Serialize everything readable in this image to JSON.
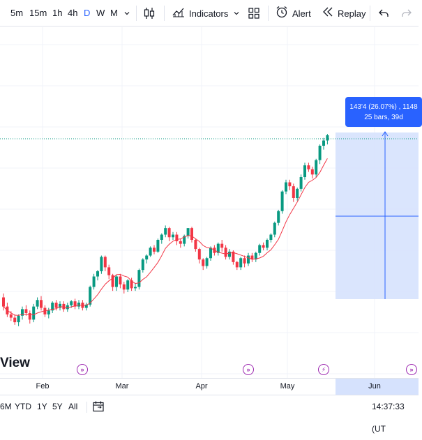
{
  "toolbar": {
    "intervals": [
      "5m",
      "15m",
      "1h",
      "4h",
      "D",
      "W",
      "M"
    ],
    "active_interval": "D",
    "indicators_label": "Indicators",
    "alert_label": "Alert",
    "replay_label": "Replay"
  },
  "measure": {
    "line1": "143'4 (26.07%) , 1148",
    "line2": "25 bars, 39d"
  },
  "brand": "View",
  "time_axis": [
    "Feb",
    "Mar",
    "Apr",
    "May",
    "Jun"
  ],
  "bottombar": {
    "ranges": [
      "6M",
      "YTD",
      "1Y",
      "5Y",
      "All"
    ],
    "clock": "14:37:33 (UT"
  },
  "colors": {
    "up": "#089981",
    "down": "#f23645",
    "ma": "#f23645",
    "accent": "#2962ff",
    "measure_fill": "#d6e2fd",
    "event": "#9c27b0"
  },
  "icons": [
    "chevron-down-icon",
    "candles-icon",
    "indicators-icon",
    "layout-icon",
    "alert-icon",
    "replay-icon",
    "undo-icon",
    "redo-icon",
    "calendar-range-icon",
    "event-icon"
  ],
  "chart_data": {
    "type": "candlestick",
    "x_labels": [
      "Feb",
      "Mar",
      "Apr",
      "May",
      "Jun"
    ],
    "candles": [
      [
        356,
        342,
        362,
        336
      ],
      [
        342,
        330,
        348,
        326
      ],
      [
        330,
        325,
        335,
        320
      ],
      [
        325,
        318,
        330,
        314
      ],
      [
        318,
        328,
        330,
        312
      ],
      [
        328,
        338,
        342,
        322
      ],
      [
        338,
        332,
        344,
        328
      ],
      [
        332,
        322,
        336,
        316
      ],
      [
        322,
        342,
        346,
        318
      ],
      [
        342,
        352,
        356,
        338
      ],
      [
        352,
        340,
        358,
        336
      ],
      [
        340,
        330,
        344,
        326
      ],
      [
        330,
        336,
        340,
        324
      ],
      [
        336,
        348,
        350,
        332
      ],
      [
        348,
        340,
        352,
        336
      ],
      [
        340,
        346,
        350,
        336
      ],
      [
        346,
        338,
        350,
        334
      ],
      [
        338,
        344,
        348,
        334
      ],
      [
        344,
        350,
        352,
        340
      ],
      [
        350,
        342,
        354,
        338
      ],
      [
        342,
        348,
        352,
        338
      ],
      [
        348,
        340,
        352,
        336
      ],
      [
        340,
        345,
        348,
        336
      ],
      [
        345,
        372,
        374,
        342
      ],
      [
        372,
        388,
        392,
        368
      ],
      [
        388,
        396,
        398,
        382
      ],
      [
        396,
        418,
        420,
        392
      ],
      [
        418,
        402,
        420,
        396
      ],
      [
        402,
        390,
        406,
        384
      ],
      [
        390,
        372,
        392,
        366
      ],
      [
        372,
        388,
        390,
        366
      ],
      [
        388,
        376,
        392,
        370
      ],
      [
        376,
        368,
        380,
        362
      ],
      [
        368,
        382,
        384,
        364
      ],
      [
        382,
        370,
        386,
        366
      ],
      [
        370,
        372,
        378,
        366
      ],
      [
        372,
        398,
        400,
        368
      ],
      [
        398,
        414,
        416,
        394
      ],
      [
        414,
        420,
        422,
        408
      ],
      [
        420,
        432,
        434,
        418
      ],
      [
        432,
        426,
        436,
        422
      ],
      [
        426,
        444,
        446,
        424
      ],
      [
        444,
        452,
        454,
        438
      ],
      [
        452,
        462,
        466,
        448
      ],
      [
        462,
        448,
        464,
        442
      ],
      [
        448,
        452,
        456,
        444
      ],
      [
        452,
        442,
        456,
        436
      ],
      [
        442,
        438,
        446,
        432
      ],
      [
        438,
        450,
        452,
        434
      ],
      [
        450,
        462,
        462,
        446
      ],
      [
        462,
        444,
        464,
        440
      ],
      [
        444,
        430,
        446,
        426
      ],
      [
        430,
        414,
        432,
        408
      ],
      [
        414,
        404,
        416,
        398
      ],
      [
        404,
        416,
        418,
        400
      ],
      [
        416,
        432,
        434,
        412
      ],
      [
        432,
        424,
        436,
        420
      ],
      [
        424,
        438,
        440,
        420
      ],
      [
        438,
        432,
        444,
        426
      ],
      [
        432,
        418,
        436,
        414
      ],
      [
        418,
        426,
        430,
        414
      ],
      [
        426,
        410,
        428,
        406
      ],
      [
        410,
        402,
        412,
        398
      ],
      [
        402,
        416,
        418,
        398
      ],
      [
        416,
        408,
        420,
        402
      ],
      [
        408,
        420,
        424,
        404
      ],
      [
        420,
        414,
        424,
        410
      ],
      [
        414,
        424,
        426,
        410
      ],
      [
        424,
        436,
        438,
        420
      ],
      [
        436,
        432,
        440,
        428
      ],
      [
        432,
        444,
        446,
        428
      ],
      [
        444,
        452,
        454,
        440
      ],
      [
        452,
        470,
        472,
        448
      ],
      [
        470,
        488,
        490,
        466
      ],
      [
        488,
        518,
        520,
        484
      ],
      [
        518,
        532,
        536,
        514
      ],
      [
        532,
        526,
        536,
        520
      ],
      [
        526,
        508,
        530,
        502
      ],
      [
        508,
        522,
        524,
        504
      ],
      [
        522,
        540,
        544,
        518
      ],
      [
        540,
        558,
        562,
        536
      ],
      [
        558,
        552,
        562,
        548
      ],
      [
        552,
        544,
        556,
        538
      ],
      [
        544,
        566,
        568,
        540
      ],
      [
        566,
        588,
        590,
        560
      ],
      [
        588,
        596,
        600,
        582
      ],
      [
        596,
        604,
        606,
        590
      ]
    ]
  }
}
